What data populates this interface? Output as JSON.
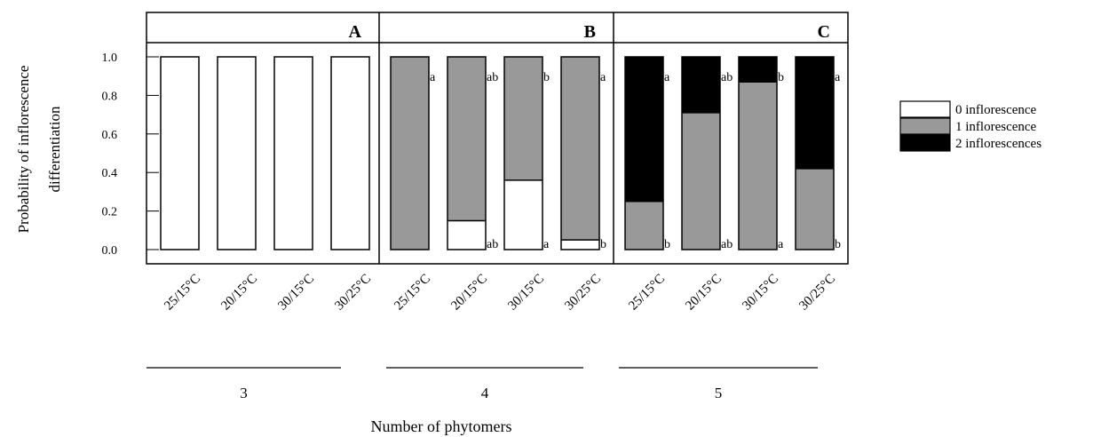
{
  "chart_data": {
    "type": "bar",
    "stacked": true,
    "ylabel_lines": [
      "Probability  of inflorescence",
      "differentiation"
    ],
    "xlabel": "Number  of phytomers",
    "ylim": [
      0,
      1
    ],
    "yticks": [
      "0.0",
      "0.2",
      "0.4",
      "0.6",
      "0.8",
      "1.0"
    ],
    "ytick_values": [
      0.0,
      0.2,
      0.4,
      0.6,
      0.8,
      1.0
    ],
    "categories": [
      "25/15°C",
      "20/15°C",
      "30/15°C",
      "30/25°C"
    ],
    "legend": [
      {
        "label": "0 inflorescence",
        "color": "#ffffff"
      },
      {
        "label": "1 inflorescence",
        "color": "#999999"
      },
      {
        "label": "2 inflorescences",
        "color": "#000000"
      }
    ],
    "legend_position": "right",
    "panels": [
      {
        "letter": "A",
        "group": "3",
        "bars": [
          {
            "p0": 1.0,
            "p1": 0.0,
            "p2": 0.0,
            "top_letter": "",
            "bottom_letter": ""
          },
          {
            "p0": 1.0,
            "p1": 0.0,
            "p2": 0.0,
            "top_letter": "",
            "bottom_letter": ""
          },
          {
            "p0": 1.0,
            "p1": 0.0,
            "p2": 0.0,
            "top_letter": "",
            "bottom_letter": ""
          },
          {
            "p0": 1.0,
            "p1": 0.0,
            "p2": 0.0,
            "top_letter": "",
            "bottom_letter": ""
          }
        ]
      },
      {
        "letter": "B",
        "group": "4",
        "bars": [
          {
            "p0": 0.0,
            "p1": 1.0,
            "p2": 0.0,
            "top_letter": "a",
            "bottom_letter": ""
          },
          {
            "p0": 0.15,
            "p1": 0.85,
            "p2": 0.0,
            "top_letter": "ab",
            "bottom_letter": "ab"
          },
          {
            "p0": 0.36,
            "p1": 0.64,
            "p2": 0.0,
            "top_letter": "b",
            "bottom_letter": "a"
          },
          {
            "p0": 0.05,
            "p1": 0.95,
            "p2": 0.0,
            "top_letter": "a",
            "bottom_letter": "b"
          }
        ]
      },
      {
        "letter": "C",
        "group": "5",
        "bars": [
          {
            "p0": 0.0,
            "p1": 0.25,
            "p2": 0.75,
            "top_letter": "a",
            "bottom_letter": "b"
          },
          {
            "p0": 0.0,
            "p1": 0.71,
            "p2": 0.29,
            "top_letter": "ab",
            "bottom_letter": "ab"
          },
          {
            "p0": 0.0,
            "p1": 0.87,
            "p2": 0.13,
            "top_letter": "b",
            "bottom_letter": "a"
          },
          {
            "p0": 0.0,
            "p1": 0.42,
            "p2": 0.58,
            "top_letter": "a",
            "bottom_letter": "b"
          }
        ]
      }
    ]
  }
}
